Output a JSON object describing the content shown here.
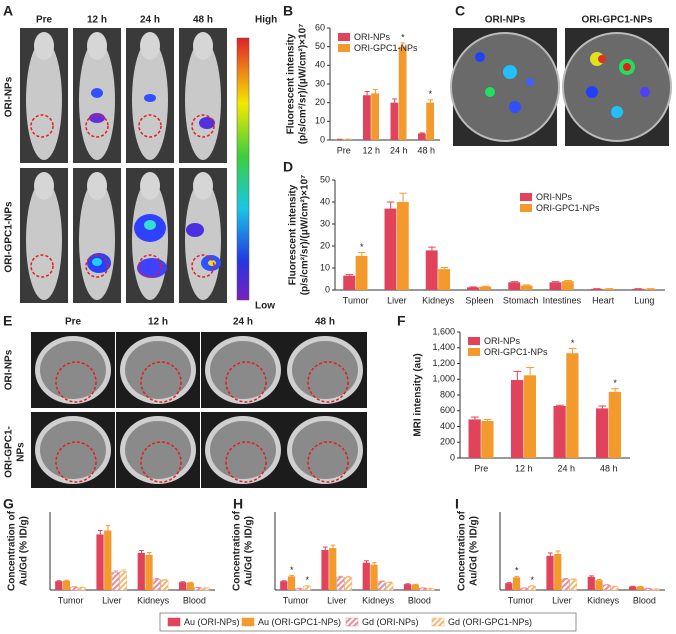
{
  "panels": {
    "A": {
      "label": "A",
      "columns": [
        "Pre",
        "12 h",
        "24 h",
        "48 h"
      ],
      "rows": [
        "ORI-NPs",
        "ORI-GPC1-NPs"
      ],
      "scale": [
        "High",
        "Low"
      ]
    },
    "C": {
      "label": "C",
      "images": [
        "ORI-NPs",
        "ORI-GPC1-NPs"
      ]
    },
    "E": {
      "label": "E",
      "columns": [
        "Pre",
        "12 h",
        "24 h",
        "48 h"
      ],
      "rows": [
        [
          "ORI-NPs"
        ],
        [
          "ORI-GPC1-",
          "NPs"
        ]
      ]
    }
  },
  "chart_data": [
    {
      "type": "bar",
      "label": "B",
      "ylabel": [
        "Fluorescent intensity",
        "(p/s/cm²/sr)/(μW/cm²)×10⁷"
      ],
      "categories": [
        "Pre",
        "12 h",
        "24 h",
        "48 h"
      ],
      "series": [
        {
          "name": "ORI-NPs",
          "color": "#e2435c",
          "values": [
            0.3,
            24,
            20,
            3.5
          ],
          "errors": [
            0.1,
            2,
            2,
            0.3
          ]
        },
        {
          "name": "ORI-GPC1-NPs",
          "color": "#f39a2c",
          "values": [
            0.3,
            25,
            50,
            20
          ],
          "errors": [
            0.1,
            2,
            2,
            1.5
          ]
        }
      ],
      "ylim": [
        0,
        60
      ],
      "yticks": [
        0,
        10,
        20,
        30,
        40,
        50,
        60
      ],
      "legend": "upper left",
      "annotations": [
        {
          "text": "*",
          "series": 1,
          "index": 2
        },
        {
          "text": "*",
          "series": 1,
          "index": 3
        }
      ]
    },
    {
      "type": "bar",
      "label": "D",
      "ylabel": [
        "Fluorescent intensity",
        "(p/s/cm²/sr)/(μW/cm²)×10⁷"
      ],
      "categories": [
        "Tumor",
        "Liver",
        "Kidneys",
        "Spleen",
        "Stomach",
        "Intestines",
        "Heart",
        "Lung"
      ],
      "series": [
        {
          "name": "ORI-NPs",
          "color": "#e2435c",
          "values": [
            6.5,
            37,
            18,
            1.2,
            3.5,
            3.5,
            0.5,
            0.5
          ],
          "errors": [
            0.5,
            3,
            1.5,
            0.2,
            0.3,
            0.3,
            0.1,
            0.1
          ]
        },
        {
          "name": "ORI-GPC1-NPs",
          "color": "#f39a2c",
          "values": [
            15.5,
            40,
            9.5,
            1.5,
            2,
            4,
            0.5,
            0.5
          ],
          "errors": [
            1.5,
            4,
            0.7,
            0.2,
            0.3,
            0.3,
            0.1,
            0.1
          ]
        }
      ],
      "ylim": [
        0,
        50
      ],
      "yticks": [
        0,
        10,
        20,
        30,
        40,
        50
      ],
      "legend": "upper right",
      "annotations": [
        {
          "text": "*",
          "series": 1,
          "index": 0
        }
      ]
    },
    {
      "type": "bar",
      "label": "F",
      "ylabel": [
        "MRI intensity (au)"
      ],
      "categories": [
        "Pre",
        "12 h",
        "24 h",
        "48 h"
      ],
      "series": [
        {
          "name": "ORI-NPs",
          "color": "#e2435c",
          "values": [
            490,
            990,
            660,
            630
          ],
          "errors": [
            30,
            110,
            10,
            30
          ]
        },
        {
          "name": "ORI-GPC1-NPs",
          "color": "#f39a2c",
          "values": [
            470,
            1050,
            1330,
            840
          ],
          "errors": [
            20,
            100,
            60,
            40
          ]
        }
      ],
      "ylim": [
        0,
        1600
      ],
      "yticks": [
        0,
        200,
        400,
        600,
        800,
        {
          "value": 1000,
          "label": "1,000"
        },
        {
          "value": 1200,
          "label": "1,200"
        },
        {
          "value": 1400,
          "label": "1,400"
        },
        {
          "value": 1600,
          "label": "1,600"
        }
      ],
      "legend": "upper left",
      "annotations": [
        {
          "text": "*",
          "series": 1,
          "index": 2
        },
        {
          "text": "*",
          "series": 1,
          "index": 3
        }
      ]
    },
    {
      "type": "bar",
      "label": "G",
      "ylabel": [
        "Concentration of",
        "Au/Gd (% ID/g)"
      ],
      "categories": [
        "Tumor",
        "Liver",
        "Kidneys",
        "Blood"
      ],
      "series": [
        {
          "name": "Au (ORI-NPs)",
          "color": "#e2435c",
          "values": [
            9,
            57,
            38,
            8
          ],
          "errors": [
            0.5,
            4,
            2.5,
            0.5
          ]
        },
        {
          "name": "Au (ORI-GPC1-NPs)",
          "color": "#f39a2c",
          "values": [
            9.5,
            61,
            36,
            7.5
          ],
          "errors": [
            0.5,
            5,
            2.5,
            0.5
          ]
        },
        {
          "name": "Gd (ORI-NPs)",
          "color": "#e58e99",
          "hatch": true,
          "values": [
            3,
            18,
            11,
            2.5
          ],
          "errors": [
            0.3,
            1.5,
            0.8,
            0.2
          ]
        },
        {
          "name": "Gd (ORI-GPC1-NPs)",
          "color": "#f3b870",
          "hatch": true,
          "values": [
            2.5,
            19,
            10,
            2
          ],
          "errors": [
            0.3,
            1.5,
            0.8,
            0.2
          ]
        }
      ],
      "ylim": [
        0,
        80
      ],
      "legend": "bottom"
    },
    {
      "type": "bar",
      "label": "H",
      "ylabel": [
        "Concentration of",
        "Au/Gd (% ID/g)"
      ],
      "categories": [
        "Tumor",
        "Liver",
        "Kidneys",
        "Blood"
      ],
      "series": [
        {
          "color": "#e2435c",
          "values": [
            9,
            41,
            28,
            6
          ],
          "errors": [
            0.5,
            3,
            2,
            0.4
          ]
        },
        {
          "color": "#f39a2c",
          "values": [
            14,
            43,
            26,
            5.5
          ],
          "errors": [
            1,
            3,
            2,
            0.4
          ]
        },
        {
          "color": "#e58e99",
          "hatch": true,
          "values": [
            1.5,
            13,
            8.5,
            2
          ],
          "errors": [
            0.2,
            1,
            0.6,
            0.2
          ]
        },
        {
          "color": "#f3b870",
          "hatch": true,
          "values": [
            4,
            13,
            7.5,
            1.5
          ],
          "errors": [
            0.4,
            1,
            0.6,
            0.2
          ]
        }
      ],
      "ylim": [
        0,
        80
      ],
      "annotations": [
        {
          "text": "*",
          "series": 1,
          "index": 0
        },
        {
          "text": "*",
          "series": 3,
          "index": 0
        }
      ]
    },
    {
      "type": "bar",
      "label": "I",
      "ylabel": [
        "Concentration of",
        "Au/Gd (% ID/g)"
      ],
      "categories": [
        "Tumor",
        "Liver",
        "Kidneys",
        "Blood"
      ],
      "series": [
        {
          "color": "#e2435c",
          "values": [
            7,
            35,
            13.5,
            3.5
          ],
          "errors": [
            0.5,
            3,
            1,
            0.3
          ]
        },
        {
          "color": "#f39a2c",
          "values": [
            13,
            37,
            10,
            3.5
          ],
          "errors": [
            1,
            3,
            0.8,
            0.3
          ]
        },
        {
          "color": "#e58e99",
          "hatch": true,
          "values": [
            2,
            11,
            5,
            1.5
          ],
          "errors": [
            0.2,
            0.8,
            0.4,
            0.2
          ]
        },
        {
          "color": "#f3b870",
          "hatch": true,
          "values": [
            4,
            10.5,
            3.5,
            1
          ],
          "errors": [
            0.4,
            0.8,
            0.3,
            0.1
          ]
        }
      ],
      "ylim": [
        0,
        80
      ],
      "annotations": [
        {
          "text": "*",
          "series": 1,
          "index": 0
        },
        {
          "text": "*",
          "series": 3,
          "index": 0
        }
      ]
    }
  ]
}
